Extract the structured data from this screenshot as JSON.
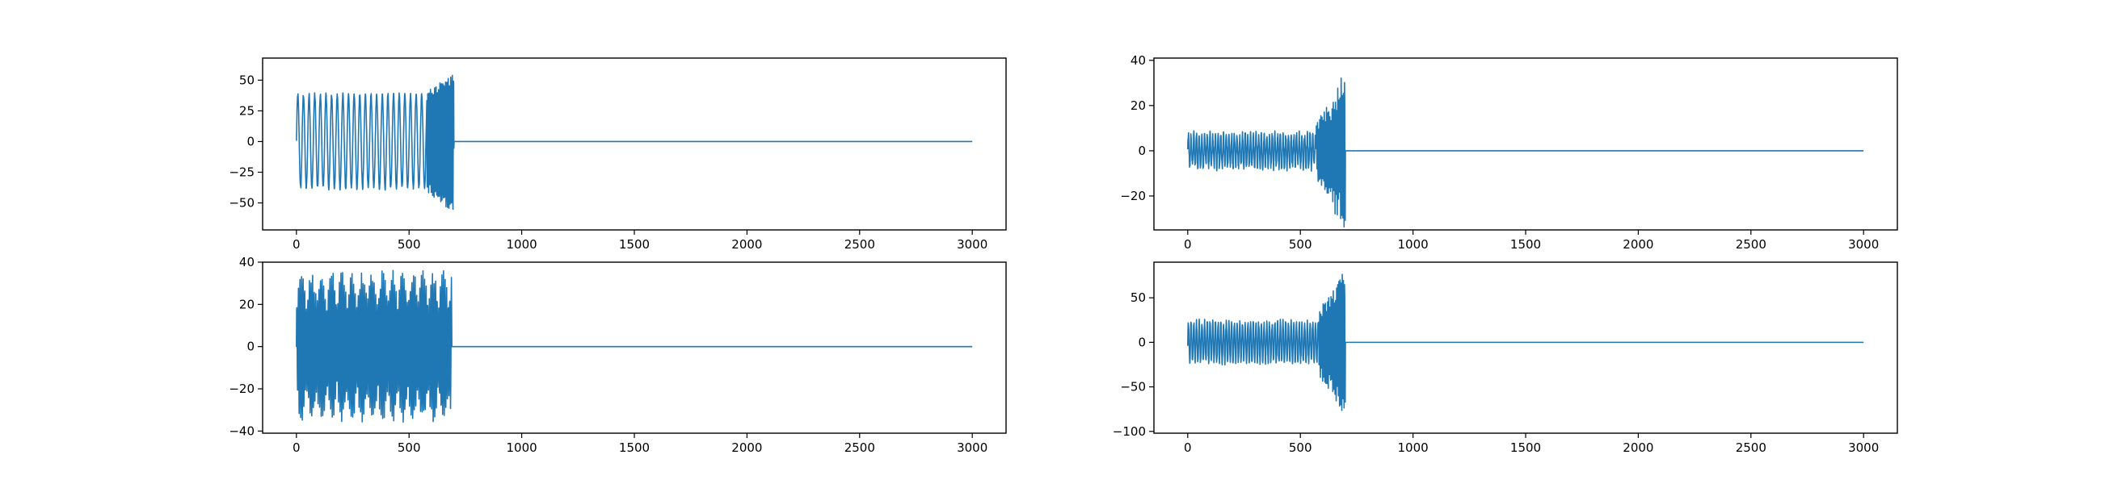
{
  "line_color": "#1f77b4",
  "chart_data": [
    {
      "type": "line",
      "position_label": "top-left",
      "xlim": [
        -150,
        3150
      ],
      "ylim": [
        -72,
        68
      ],
      "xticks": [
        0,
        500,
        1000,
        1500,
        2000,
        2500,
        3000
      ],
      "yticks": [
        -50,
        -25,
        0,
        25,
        50
      ],
      "grid": false,
      "series": [
        {
          "segments": [
            {
              "x_start": 0,
              "x_end": 580,
              "pattern": "sine",
              "amplitude": 38,
              "period": 25,
              "noise": 2,
              "offset": 0
            },
            {
              "x_start": 580,
              "x_end": 700,
              "pattern": "burst",
              "amp_start": 40,
              "amp_end": 65,
              "period": 6,
              "noise": 6,
              "offset": 0
            },
            {
              "x_start": 700,
              "x_end": 3000,
              "pattern": "flat",
              "value": 0
            }
          ],
          "y_range_observed": [
            -66,
            62
          ]
        }
      ]
    },
    {
      "type": "line",
      "position_label": "top-right",
      "xlim": [
        -150,
        3150
      ],
      "ylim": [
        -35,
        41
      ],
      "xticks": [
        0,
        500,
        1000,
        1500,
        2000,
        2500,
        3000
      ],
      "yticks": [
        -20,
        0,
        20,
        40
      ],
      "grid": false,
      "series": [
        {
          "segments": [
            {
              "x_start": 0,
              "x_end": 570,
              "pattern": "sine",
              "amplitude": 7,
              "period": 12,
              "noise": 2,
              "offset": 0
            },
            {
              "x_start": 570,
              "x_end": 700,
              "pattern": "burst",
              "amp_start": 10,
              "amp_end": 35,
              "period": 5,
              "noise": 4,
              "offset": 0
            },
            {
              "x_start": 700,
              "x_end": 3000,
              "pattern": "flat",
              "value": 0
            }
          ],
          "y_range_observed": [
            -31,
            38
          ]
        }
      ]
    },
    {
      "type": "line",
      "position_label": "bottom-left",
      "xlim": [
        -150,
        3150
      ],
      "ylim": [
        -41,
        40
      ],
      "xticks": [
        0,
        500,
        1000,
        1500,
        2000,
        2500,
        3000
      ],
      "yticks": [
        -40,
        -20,
        0,
        20,
        40
      ],
      "grid": false,
      "series": [
        {
          "segments": [
            {
              "x_start": 0,
              "x_end": 690,
              "pattern": "beat",
              "amplitude": 34,
              "period": 7,
              "beat_period": 45,
              "noise": 3,
              "offset": 0
            },
            {
              "x_start": 690,
              "x_end": 3000,
              "pattern": "flat",
              "value": 0
            }
          ],
          "y_range_observed": [
            -37,
            38
          ]
        }
      ]
    },
    {
      "type": "line",
      "position_label": "bottom-right",
      "xlim": [
        -150,
        3150
      ],
      "ylim": [
        -102,
        90
      ],
      "xticks": [
        0,
        500,
        1000,
        1500,
        2000,
        2500,
        3000
      ],
      "yticks": [
        -100,
        -50,
        0,
        50
      ],
      "grid": false,
      "series": [
        {
          "segments": [
            {
              "x_start": 0,
              "x_end": 580,
              "pattern": "sine",
              "amplitude": 22,
              "period": 12,
              "noise": 4,
              "offset": 0
            },
            {
              "x_start": 580,
              "x_end": 700,
              "pattern": "burst",
              "amp_start": 30,
              "amp_end": 90,
              "period": 5,
              "noise": 8,
              "offset": 0
            },
            {
              "x_start": 700,
              "x_end": 3000,
              "pattern": "flat",
              "value": 0
            }
          ],
          "y_range_observed": [
            -95,
            84
          ]
        }
      ]
    }
  ]
}
